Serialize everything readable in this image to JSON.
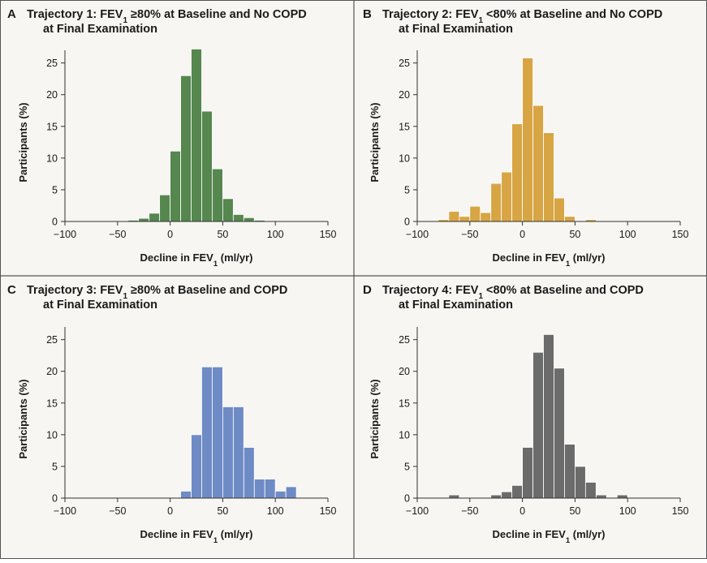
{
  "chart_data": [
    {
      "type": "bar",
      "panel": "A",
      "title_parts": [
        "Trajectory 1: FEV",
        "1",
        " ≥80% at Baseline and No COPD"
      ],
      "title_line2": "at Final Examination",
      "xlabel_parts": [
        "Decline in FEV",
        "1",
        " (ml/yr)"
      ],
      "ylabel": "Participants (%)",
      "xlim": [
        -100,
        150
      ],
      "ylim": [
        0,
        27
      ],
      "xticks": [
        -100,
        -50,
        0,
        50,
        100,
        150
      ],
      "yticks": [
        0,
        5,
        10,
        15,
        20,
        25
      ],
      "bin_width": 10,
      "color": "#55874f",
      "bins": [
        -40,
        -30,
        -20,
        -10,
        0,
        10,
        20,
        30,
        40,
        50,
        60,
        70,
        80
      ],
      "values": [
        0.2,
        0.5,
        1.3,
        4.2,
        11.1,
        23.0,
        27.2,
        17.4,
        8.3,
        3.6,
        1.1,
        0.6,
        0.2
      ]
    },
    {
      "type": "bar",
      "panel": "B",
      "title_parts": [
        "Trajectory 2: FEV",
        "1",
        " <80% at Baseline and No COPD"
      ],
      "title_line2": "at Final Examination",
      "xlabel_parts": [
        "Decline in FEV",
        "1",
        " (ml/yr)"
      ],
      "ylabel": "Participants (%)",
      "xlim": [
        -100,
        150
      ],
      "ylim": [
        0,
        27
      ],
      "xticks": [
        -100,
        -50,
        0,
        50,
        100,
        150
      ],
      "yticks": [
        0,
        5,
        10,
        15,
        20,
        25
      ],
      "bin_width": 10,
      "color": "#d7a544",
      "bins": [
        -80,
        -70,
        -60,
        -50,
        -40,
        -30,
        -20,
        -10,
        0,
        10,
        20,
        30,
        40,
        50,
        60
      ],
      "values": [
        0.3,
        1.6,
        0.8,
        2.4,
        1.4,
        6.0,
        7.8,
        15.4,
        25.8,
        18.3,
        14.0,
        3.7,
        0.8,
        0.0,
        0.3
      ]
    },
    {
      "type": "bar",
      "panel": "C",
      "title_parts": [
        "Trajectory 3: FEV",
        "1",
        " ≥80% at Baseline and COPD"
      ],
      "title_line2": "at Final Examination",
      "xlabel_parts": [
        "Decline in FEV",
        "1",
        " (ml/yr)"
      ],
      "ylabel": "Participants (%)",
      "xlim": [
        -100,
        150
      ],
      "ylim": [
        0,
        27
      ],
      "xticks": [
        -100,
        -50,
        0,
        50,
        100,
        150
      ],
      "yticks": [
        0,
        5,
        10,
        15,
        20,
        25
      ],
      "bin_width": 10,
      "color": "#6f8bc6",
      "bins": [
        10,
        20,
        30,
        40,
        50,
        60,
        70,
        80,
        90,
        100,
        110
      ],
      "values": [
        1.1,
        10.0,
        20.7,
        20.7,
        14.4,
        14.4,
        8.0,
        3.0,
        3.0,
        1.1,
        1.8
      ]
    },
    {
      "type": "bar",
      "panel": "D",
      "title_parts": [
        "Trajectory 4: FEV",
        "1",
        " <80% at Baseline and COPD"
      ],
      "title_line2": "at Final Examination",
      "xlabel_parts": [
        "Decline in FEV",
        "1",
        " (ml/yr)"
      ],
      "ylabel": "Participants (%)",
      "xlim": [
        -100,
        150
      ],
      "ylim": [
        0,
        27
      ],
      "xticks": [
        -100,
        -50,
        0,
        50,
        100,
        150
      ],
      "yticks": [
        0,
        5,
        10,
        15,
        20,
        25
      ],
      "bin_width": 10,
      "color": "#6b6b6b",
      "bins": [
        -70,
        -60,
        -50,
        -40,
        -30,
        -20,
        -10,
        0,
        10,
        20,
        30,
        40,
        50,
        60,
        70,
        80,
        90
      ],
      "values": [
        0.5,
        0.0,
        0.0,
        0.0,
        0.5,
        1.0,
        2.0,
        8.0,
        23.0,
        25.8,
        20.5,
        8.5,
        5.0,
        2.5,
        0.5,
        0.0,
        0.5
      ]
    }
  ]
}
